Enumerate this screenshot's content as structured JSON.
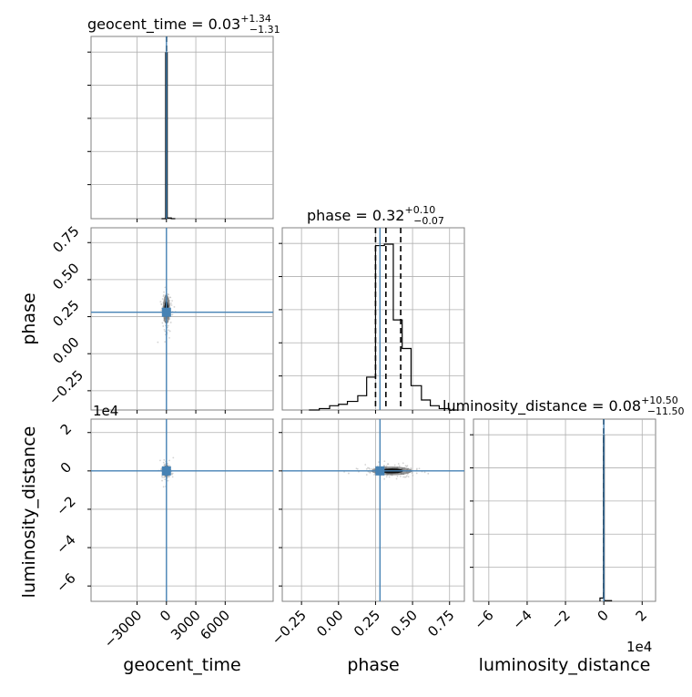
{
  "chart_data": {
    "type": "corner",
    "parameters": [
      "geocent_time",
      "phase",
      "luminosity_distance"
    ],
    "titles": [
      {
        "label": "geocent_time",
        "median": "0.03",
        "upper": "+1.34",
        "lower": "−1.31"
      },
      {
        "label": "phase",
        "median": "0.32",
        "upper": "+0.10",
        "lower": "−0.07"
      },
      {
        "label": "luminosity_distance",
        "median": "0.08",
        "upper": "+10.50",
        "lower": "−11.50"
      }
    ],
    "axis_labels": {
      "x": [
        "geocent_time",
        "phase",
        "luminosity_distance"
      ],
      "y": [
        "phase",
        "luminosity_distance"
      ]
    },
    "ranges": {
      "geocent_time": [
        -7700,
        10900
      ],
      "phase": [
        -0.38,
        0.85
      ],
      "luminosity_distance": [
        -68000,
        27000
      ]
    },
    "ticks": {
      "geocent_time": {
        "values": [
          -3000,
          0,
          3000,
          6000
        ],
        "labels": [
          "−3000",
          "0",
          "3000",
          "6000"
        ]
      },
      "phase": {
        "values": [
          -0.25,
          0.0,
          0.25,
          0.5,
          0.75
        ],
        "labels": [
          "−0.25",
          "0.00",
          "0.25",
          "0.50",
          "0.75"
        ]
      },
      "luminosity_distance": {
        "values": [
          -6,
          -4,
          -2,
          0,
          2
        ],
        "labels": [
          "−6",
          "−4",
          "−2",
          "0",
          "2"
        ]
      }
    },
    "offset_text": "1e4",
    "truth": {
      "color": "#4682b4",
      "geocent_time": 0,
      "phase": 0.28,
      "luminosity_distance": 0
    },
    "histograms": {
      "geocent_time": {
        "bin_edges": [
          -500,
          -80,
          80,
          500,
          900
        ],
        "heights": [
          0,
          0.996,
          0.004,
          0
        ],
        "quantiles": [
          -1.31,
          0.03,
          1.34
        ]
      },
      "phase": {
        "bin_edges": [
          -0.2,
          -0.13,
          -0.06,
          0.0,
          0.06,
          0.13,
          0.19,
          0.25,
          0.31,
          0.37,
          0.43,
          0.49,
          0.56,
          0.62,
          0.68,
          0.75,
          0.8
        ],
        "heights": [
          0.0,
          0.01,
          0.03,
          0.04,
          0.06,
          0.1,
          0.23,
          1.15,
          1.16,
          0.63,
          0.43,
          0.17,
          0.07,
          0.03,
          0.01,
          0.0
        ],
        "quantiles": [
          0.25,
          0.32,
          0.42
        ]
      },
      "luminosity_distance": {
        "bin_edges": [
          -2000,
          -200,
          200,
          4000
        ],
        "heights": [
          0.02,
          1.0,
          0.004
        ],
        "quantiles": [
          -11.5,
          0.08,
          10.5
        ]
      }
    },
    "grid": true
  }
}
